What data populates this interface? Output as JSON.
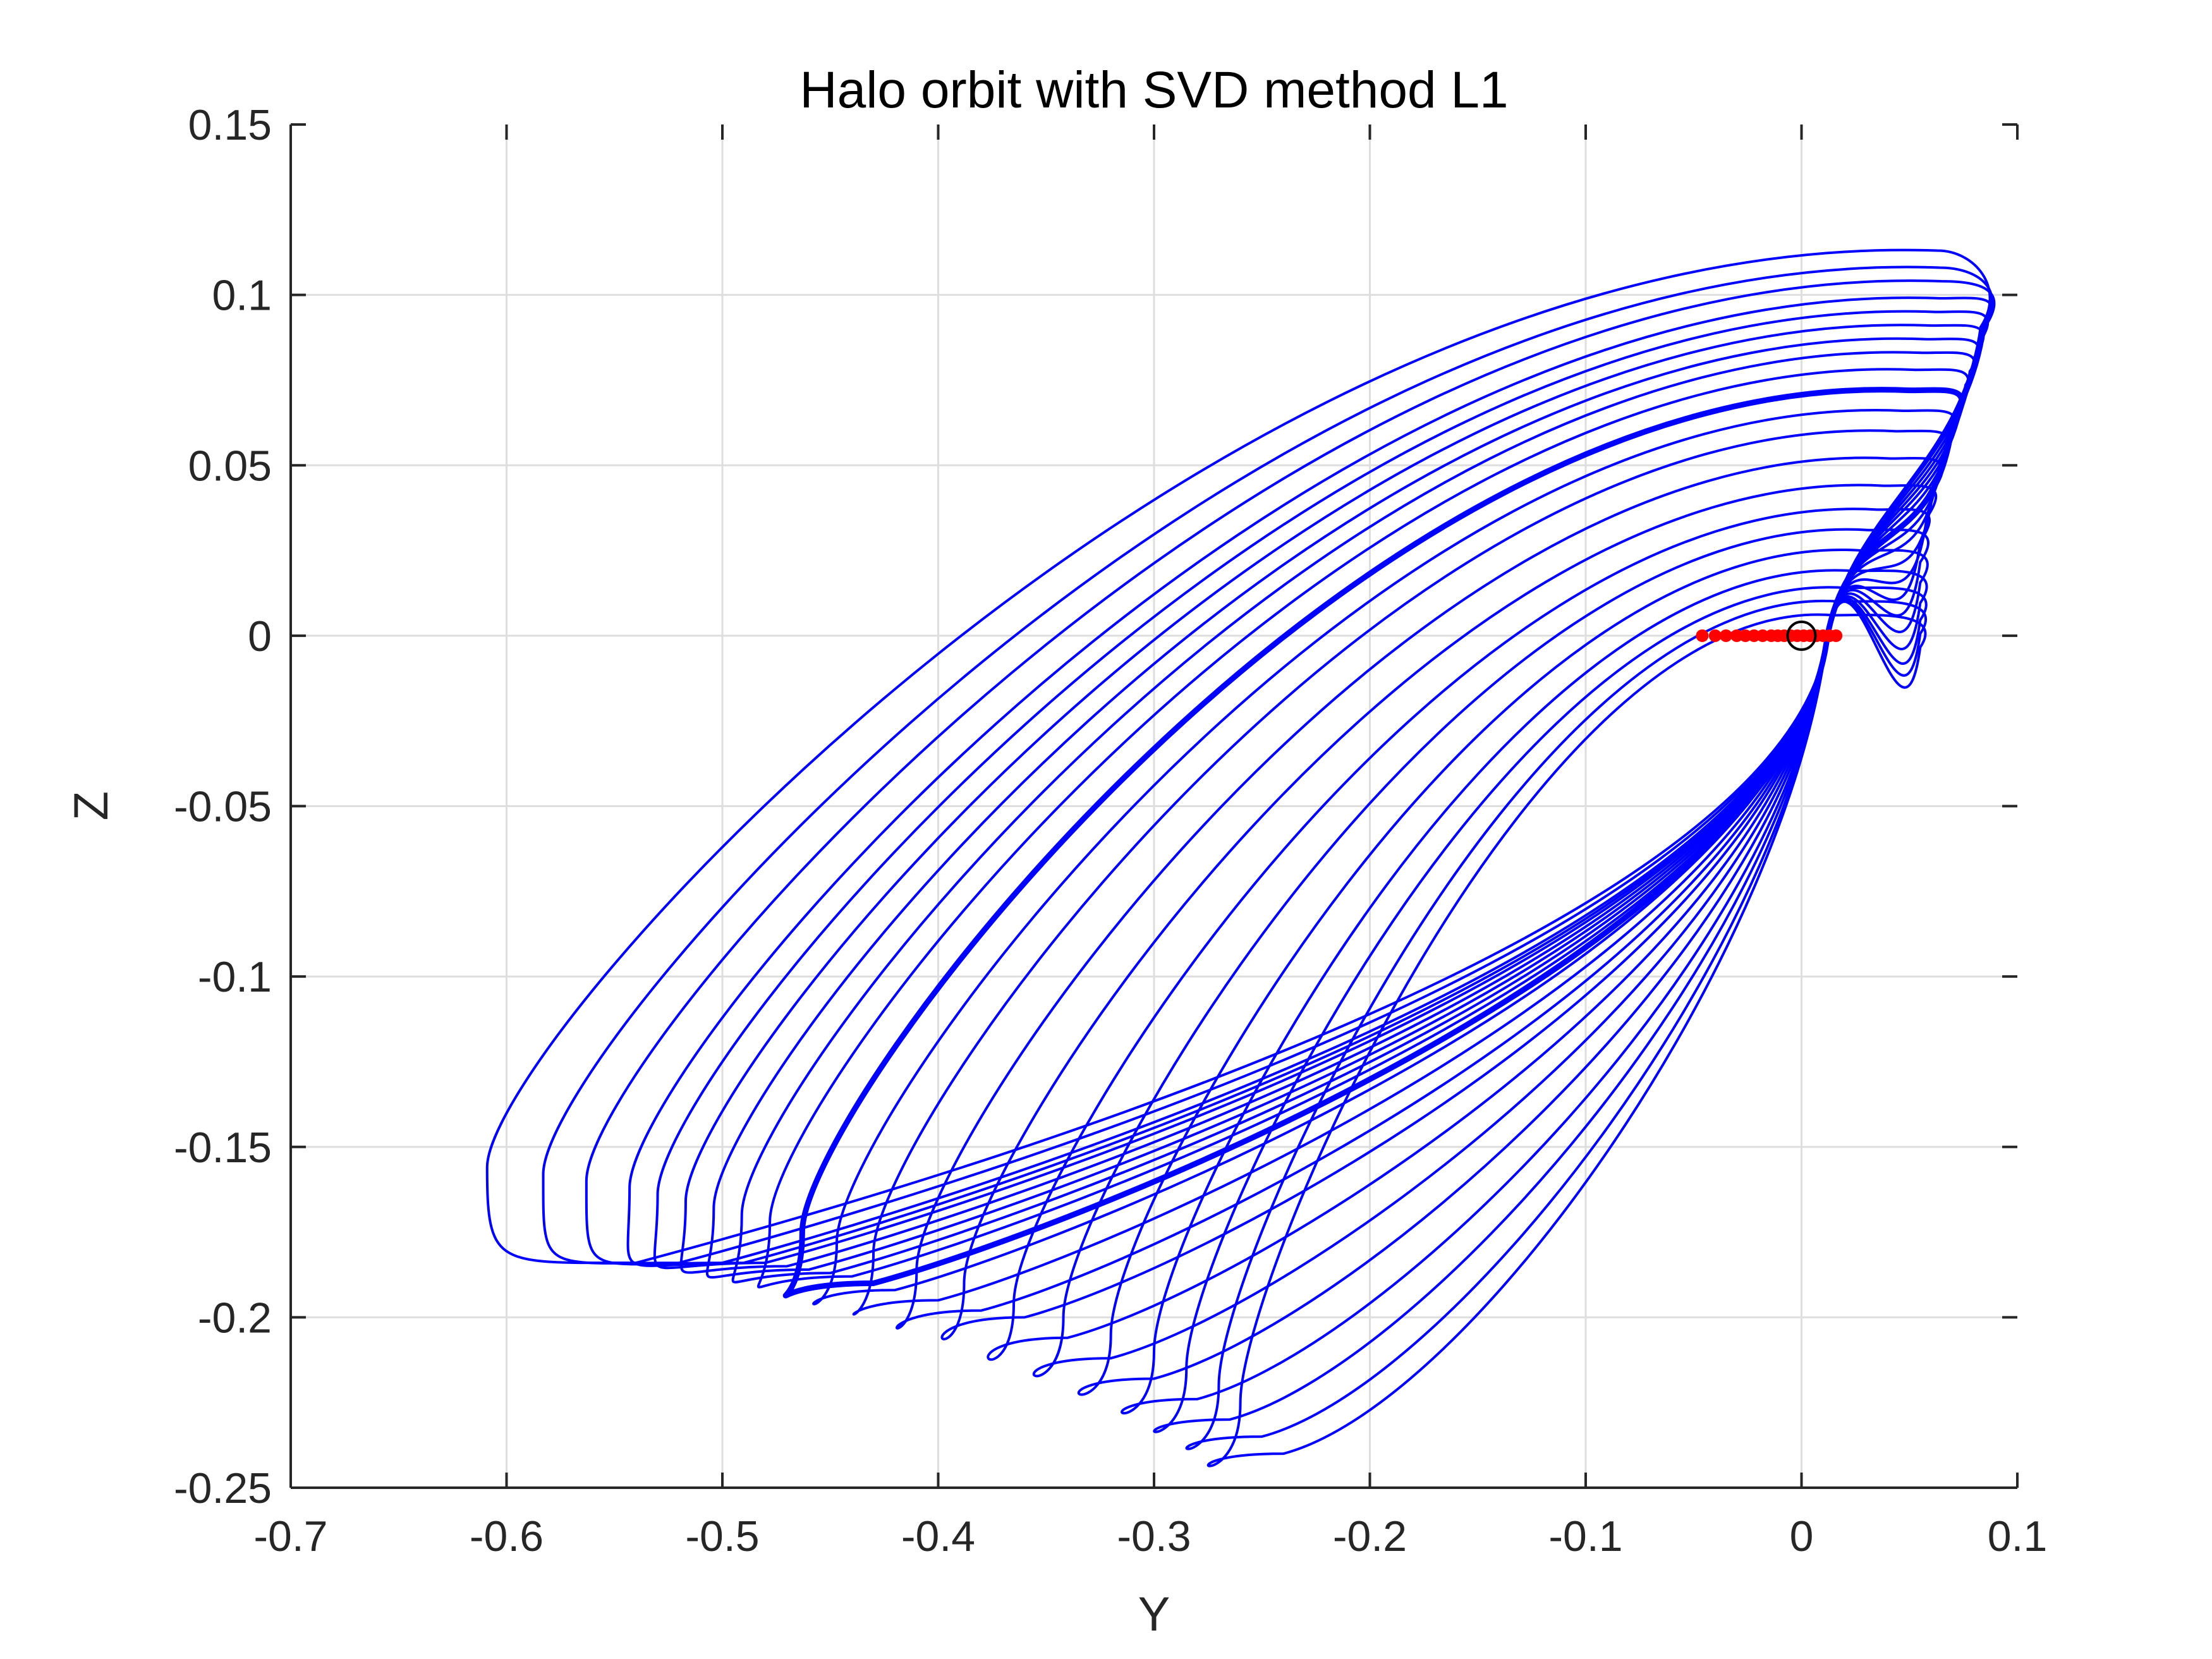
{
  "chart_data": {
    "type": "line",
    "title": "Halo orbit with SVD method L1",
    "xlabel": "Y",
    "ylabel": "Z",
    "xlim": [
      -0.7,
      0.1
    ],
    "ylim": [
      -0.25,
      0.15
    ],
    "xticks": [
      -0.7,
      -0.6,
      -0.5,
      -0.4,
      -0.3,
      -0.2,
      -0.1,
      0,
      0.1
    ],
    "yticks": [
      -0.25,
      -0.2,
      -0.15,
      -0.1,
      -0.05,
      0,
      0.05,
      0.1,
      0.15
    ],
    "xtick_labels": [
      "-0.7",
      "-0.6",
      "-0.5",
      "-0.4",
      "-0.3",
      "-0.2",
      "-0.1",
      "0",
      "0.1"
    ],
    "ytick_labels": [
      "-0.25",
      "-0.2",
      "-0.15",
      "-0.1",
      "-0.05",
      "0",
      "0.05",
      "0.1",
      "0.15"
    ],
    "grid": true,
    "orbit_color": "#0000ff",
    "marker_color": "#ff0000",
    "center_marker_color": "#000000",
    "highlighted_orbit_index": 9,
    "orbits": [
      {
        "left": [
          -0.609,
          -0.156
        ],
        "top": [
          0.063,
          0.113
        ],
        "bottom": [
          -0.54,
          -0.184
        ]
      },
      {
        "left": [
          -0.583,
          -0.158
        ],
        "top": [
          0.064,
          0.108
        ],
        "bottom": [
          -0.52,
          -0.184
        ]
      },
      {
        "left": [
          -0.563,
          -0.16
        ],
        "top": [
          0.065,
          0.104
        ],
        "bottom": [
          -0.5,
          -0.184
        ]
      },
      {
        "left": [
          -0.543,
          -0.162
        ],
        "top": [
          0.064,
          0.099
        ],
        "bottom": [
          -0.49,
          -0.184
        ]
      },
      {
        "left": [
          -0.53,
          -0.164
        ],
        "top": [
          0.062,
          0.095
        ],
        "bottom": [
          -0.48,
          -0.184
        ]
      },
      {
        "left": [
          -0.517,
          -0.166
        ],
        "top": [
          0.06,
          0.091
        ],
        "bottom": [
          -0.47,
          -0.185
        ]
      },
      {
        "left": [
          -0.504,
          -0.168
        ],
        "top": [
          0.058,
          0.087
        ],
        "bottom": [
          -0.46,
          -0.186
        ]
      },
      {
        "left": [
          -0.491,
          -0.17
        ],
        "top": [
          0.056,
          0.083
        ],
        "bottom": [
          -0.45,
          -0.187
        ]
      },
      {
        "left": [
          -0.478,
          -0.172
        ],
        "top": [
          0.053,
          0.078
        ],
        "bottom": [
          -0.44,
          -0.188
        ]
      },
      {
        "left": [
          -0.463,
          -0.175
        ],
        "top": [
          0.05,
          0.072
        ],
        "bottom": [
          -0.43,
          -0.19
        ]
      },
      {
        "left": [
          -0.447,
          -0.178
        ],
        "top": [
          0.047,
          0.066
        ],
        "bottom": [
          -0.42,
          -0.192
        ]
      },
      {
        "left": [
          -0.43,
          -0.181
        ],
        "top": [
          0.044,
          0.06
        ],
        "bottom": [
          -0.4,
          -0.195
        ]
      },
      {
        "left": [
          -0.41,
          -0.186
        ],
        "top": [
          0.041,
          0.052
        ],
        "bottom": [
          -0.38,
          -0.198
        ]
      },
      {
        "left": [
          -0.388,
          -0.19
        ],
        "top": [
          0.038,
          0.044
        ],
        "bottom": [
          -0.36,
          -0.2
        ]
      },
      {
        "left": [
          -0.365,
          -0.196
        ],
        "top": [
          0.035,
          0.037
        ],
        "bottom": [
          -0.34,
          -0.206
        ]
      },
      {
        "left": [
          -0.342,
          -0.2
        ],
        "top": [
          0.031,
          0.031
        ],
        "bottom": [
          -0.32,
          -0.212
        ]
      },
      {
        "left": [
          -0.32,
          -0.205
        ],
        "top": [
          0.028,
          0.025
        ],
        "bottom": [
          -0.3,
          -0.218
        ]
      },
      {
        "left": [
          -0.3,
          -0.21
        ],
        "top": [
          0.024,
          0.019
        ],
        "bottom": [
          -0.28,
          -0.224
        ]
      },
      {
        "left": [
          -0.285,
          -0.215
        ],
        "top": [
          0.021,
          0.014
        ],
        "bottom": [
          -0.265,
          -0.23
        ]
      },
      {
        "left": [
          -0.27,
          -0.22
        ],
        "top": [
          0.018,
          0.01
        ],
        "bottom": [
          -0.25,
          -0.235
        ]
      },
      {
        "left": [
          -0.26,
          -0.225
        ],
        "top": [
          0.015,
          0.006
        ],
        "bottom": [
          -0.24,
          -0.24
        ]
      }
    ],
    "red_points": {
      "y": [
        -0.046,
        -0.04,
        -0.035,
        -0.03,
        -0.026,
        -0.022,
        -0.018,
        -0.014,
        -0.011,
        -0.008,
        -0.005,
        -0.002,
        0.001,
        0.004,
        0.007,
        0.01,
        0.013,
        0.016
      ],
      "z": 0
    },
    "center_marker": {
      "y": 0,
      "z": 0
    }
  }
}
